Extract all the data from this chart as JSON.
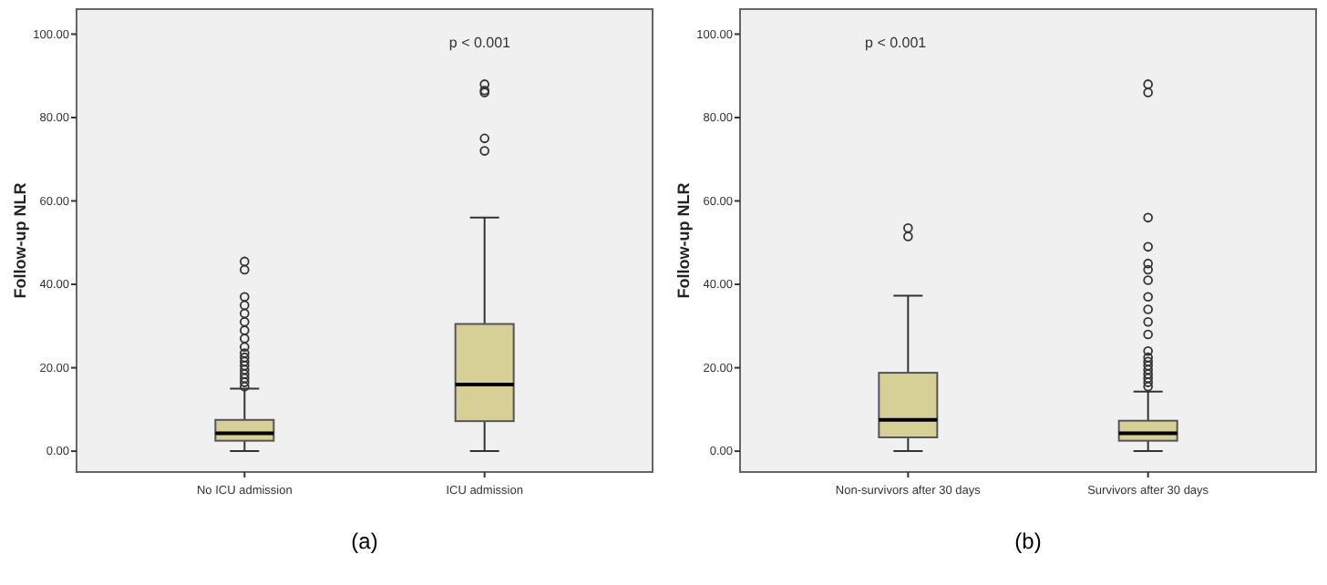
{
  "chart_data": [
    {
      "type": "box",
      "title": "(a)",
      "ylabel": "Follow-up NLR",
      "categories": [
        "No ICU admission",
        "ICU admission"
      ],
      "color": "#d6cf96",
      "ylim": [
        -5,
        106
      ],
      "yticks": [
        {
          "value": 0,
          "label": "0.00"
        },
        {
          "value": 20,
          "label": "20.00"
        },
        {
          "value": 40,
          "label": "40.00"
        },
        {
          "value": 60,
          "label": "60.00"
        },
        {
          "value": 80,
          "label": "80.00"
        },
        {
          "value": 100,
          "label": "100.00"
        }
      ],
      "grid": false,
      "boxes": [
        {
          "low": 0,
          "q1": 2.5,
          "median": 4.3,
          "q3": 7.5,
          "high": 15,
          "outliers": [
            15.5,
            16.5,
            17.5,
            18.5,
            19.5,
            20.5,
            21.5,
            22.5,
            23.5,
            25,
            27,
            29,
            31,
            33,
            35,
            37,
            43.5,
            45.5
          ]
        },
        {
          "low": 0,
          "q1": 7.2,
          "median": 16,
          "q3": 30.5,
          "high": 56,
          "outliers": [
            72,
            75,
            86,
            86.5,
            88
          ]
        }
      ],
      "annotations": [
        "p < 0.001"
      ]
    },
    {
      "type": "box",
      "title": "(b)",
      "ylabel": "Follow-up NLR",
      "categories": [
        "Non-survivors after 30 days",
        "Survivors after 30 days"
      ],
      "color": "#d6cf96",
      "ylim": [
        -5,
        106
      ],
      "yticks": [
        {
          "value": 0,
          "label": "0.00"
        },
        {
          "value": 20,
          "label": "20.00"
        },
        {
          "value": 40,
          "label": "40.00"
        },
        {
          "value": 60,
          "label": "60.00"
        },
        {
          "value": 80,
          "label": "80.00"
        },
        {
          "value": 100,
          "label": "100.00"
        }
      ],
      "grid": false,
      "boxes": [
        {
          "low": 0,
          "q1": 3.3,
          "median": 7.5,
          "q3": 18.8,
          "high": 37.3,
          "outliers": [
            51.5,
            53.5
          ]
        },
        {
          "low": 0,
          "q1": 2.5,
          "median": 4.3,
          "q3": 7.3,
          "high": 14.3,
          "outliers": [
            15.5,
            16.5,
            17.5,
            18.5,
            19.5,
            20.5,
            21.5,
            22.5,
            24,
            28,
            31,
            34,
            37,
            41,
            43.5,
            45,
            49,
            56,
            86,
            88
          ]
        }
      ],
      "annotations": [
        "p < 0.001"
      ]
    }
  ]
}
